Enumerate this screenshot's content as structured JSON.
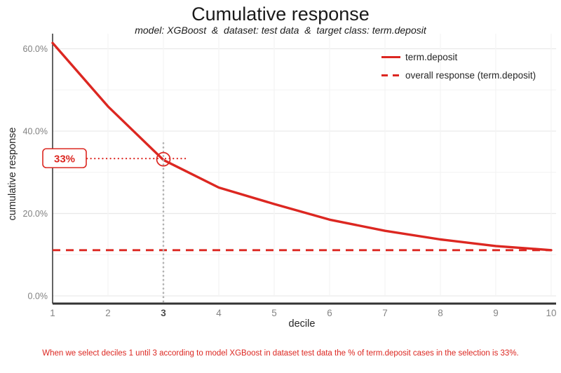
{
  "header": {
    "title": "Cumulative response",
    "subtitle": "model: XGBoost  &  dataset: test data  &  target class: term.deposit"
  },
  "colors": {
    "series_red": "#DC2721",
    "grid_major": "#e9e9e9",
    "grid_minor": "#f4f4f4",
    "axis_line_dark": "#333333",
    "y_axis_line": "#111111",
    "annotation_gray": "#b0b0b0",
    "tick_gray": "#858585"
  },
  "chart_data": {
    "type": "line",
    "title": "Cumulative response",
    "subtitle": "model: XGBoost  &  dataset: test data  &  target class: term.deposit",
    "xlabel": "decile",
    "ylabel": "cumulative response",
    "x": [
      1,
      2,
      3,
      4,
      5,
      6,
      7,
      8,
      9,
      10
    ],
    "x_tick_labels": [
      "1",
      "2",
      "3",
      "4",
      "5",
      "6",
      "7",
      "8",
      "9",
      "10"
    ],
    "highlighted_x_tick": 3,
    "y_ticks": {
      "values": [
        0,
        20,
        40,
        60
      ],
      "labels": [
        "0.0%",
        "20.0%",
        "40.0%",
        "60.0%"
      ]
    },
    "y_minor_ticks": [
      10,
      30,
      50
    ],
    "ylim": [
      0,
      64
    ],
    "grid": true,
    "legend_position": "top-right-inside",
    "series": [
      {
        "name": "term.deposit",
        "style": "solid",
        "values": [
          61.4,
          46.0,
          33.0,
          26.3,
          22.3,
          18.5,
          15.8,
          13.7,
          12.1,
          11.1
        ]
      },
      {
        "name": "overall response (term.deposit)",
        "style": "dashed",
        "values": [
          11.1,
          11.1,
          11.1,
          11.1,
          11.1,
          11.1,
          11.1,
          11.1,
          11.1,
          11.1
        ]
      }
    ],
    "annotation": {
      "text": "33%",
      "decile": 3,
      "value_pct": 33
    }
  },
  "legend": {
    "items": [
      {
        "label": "term.deposit",
        "line_style": "solid"
      },
      {
        "label": "overall response (term.deposit)",
        "line_style": "dashed"
      }
    ]
  },
  "caption": {
    "text": "When we select deciles 1 until 3 according to model XGBoost in dataset test data the % of term.deposit cases in the selection is 33%."
  }
}
